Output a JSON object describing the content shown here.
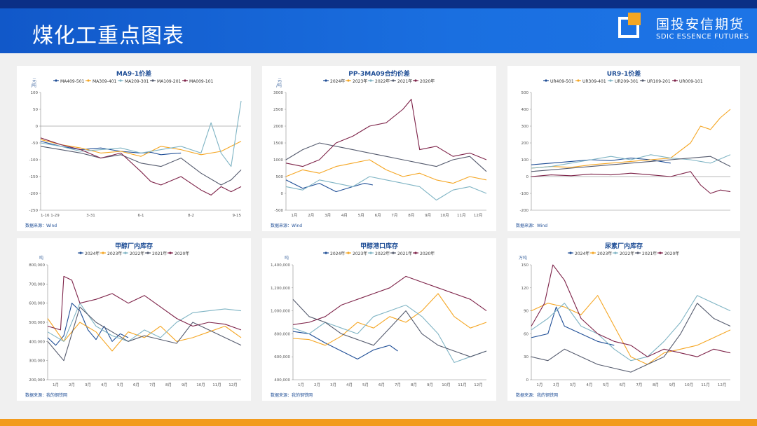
{
  "header": {
    "title": "煤化工重点图表",
    "brand_cn": "国投安信期货",
    "brand_en": "SDIC ESSENCE FUTURES"
  },
  "colors": {
    "header_blue": "#1a6fe0",
    "accent_orange": "#f29b1d",
    "s1": "#1f4e96",
    "s2": "#f5a623",
    "s3": "#7fb4c4",
    "s4": "#555b6e",
    "s5": "#7d2248"
  },
  "chart_data": [
    {
      "id": "ma91",
      "type": "line",
      "title": "MA9-1价差",
      "unit": "元\n/吨",
      "source": "数据来源：Wind",
      "ylim": [
        -250,
        100
      ],
      "yticks": [
        100,
        50,
        0,
        -50,
        -100,
        -150,
        -200,
        -250
      ],
      "xticks": [
        "1-16 1-29",
        "3-31",
        "6-1",
        "8-2",
        "9-15"
      ],
      "xlim": [
        0,
        100
      ],
      "zero_line": true,
      "series": [
        {
          "name": "MA409-501",
          "x": [
            0,
            10,
            20,
            30,
            40,
            50,
            55,
            60,
            65,
            70
          ],
          "y": [
            -45,
            -60,
            -70,
            -65,
            -75,
            -80,
            -78,
            -85,
            -82,
            -80
          ]
        },
        {
          "name": "MA309-401",
          "x": [
            0,
            10,
            20,
            30,
            40,
            50,
            60,
            70,
            80,
            90,
            95,
            100
          ],
          "y": [
            -40,
            -55,
            -65,
            -80,
            -75,
            -90,
            -60,
            -70,
            -85,
            -75,
            -60,
            -45
          ]
        },
        {
          "name": "MA209-301",
          "x": [
            0,
            10,
            20,
            30,
            40,
            50,
            60,
            70,
            80,
            85,
            90,
            95,
            100
          ],
          "y": [
            -50,
            -60,
            -75,
            -70,
            -65,
            -80,
            -70,
            -60,
            -80,
            10,
            -80,
            -120,
            75
          ]
        },
        {
          "name": "MA109-201",
          "x": [
            0,
            10,
            20,
            30,
            40,
            50,
            60,
            70,
            80,
            90,
            95,
            100
          ],
          "y": [
            -60,
            -70,
            -80,
            -95,
            -85,
            -110,
            -120,
            -95,
            -140,
            -175,
            -160,
            -130
          ]
        },
        {
          "name": "MA009-101",
          "x": [
            0,
            10,
            20,
            30,
            40,
            50,
            55,
            60,
            70,
            80,
            85,
            90,
            95,
            100
          ],
          "y": [
            -35,
            -55,
            -70,
            -95,
            -80,
            -135,
            -165,
            -175,
            -150,
            -190,
            -205,
            -180,
            -195,
            -180
          ]
        }
      ]
    },
    {
      "id": "pp3ma",
      "type": "line",
      "title": "PP-3MA09合约价差",
      "unit": "元\n/吨",
      "source": "数据来源：Wind",
      "ylim": [
        -500,
        3000
      ],
      "yticks": [
        3000,
        2500,
        2000,
        1500,
        1000,
        500,
        0,
        -500
      ],
      "xticks": [
        "1月",
        "2月",
        "3月",
        "4月",
        "5月",
        "6月",
        "7月",
        "8月",
        "9月",
        "10月",
        "11月",
        "12月"
      ],
      "xlim": [
        0,
        12
      ],
      "series": [
        {
          "name": "2024年",
          "x": [
            0,
            1,
            2,
            3,
            4,
            4.7,
            5.2
          ],
          "y": [
            400,
            150,
            300,
            50,
            200,
            300,
            250
          ]
        },
        {
          "name": "2023年",
          "x": [
            0,
            1,
            2,
            3,
            4,
            5,
            6,
            7,
            8,
            9,
            10,
            11,
            12
          ],
          "y": [
            500,
            700,
            600,
            800,
            900,
            1000,
            700,
            500,
            600,
            400,
            300,
            500,
            400
          ]
        },
        {
          "name": "2022年",
          "x": [
            0,
            1,
            2,
            3,
            4,
            5,
            6,
            7,
            8,
            9,
            10,
            11,
            12
          ],
          "y": [
            200,
            100,
            400,
            300,
            200,
            500,
            400,
            300,
            200,
            -200,
            100,
            200,
            0
          ]
        },
        {
          "name": "2021年",
          "x": [
            0,
            1,
            2,
            3,
            4,
            5,
            6,
            7,
            8,
            9,
            10,
            11,
            12
          ],
          "y": [
            1000,
            1300,
            1500,
            1400,
            1300,
            1200,
            1100,
            1000,
            900,
            800,
            1000,
            1100,
            650
          ]
        },
        {
          "name": "2020年",
          "x": [
            0,
            1,
            2,
            3,
            4,
            5,
            6,
            7,
            7.5,
            8,
            9,
            10,
            11,
            12
          ],
          "y": [
            900,
            800,
            1000,
            1500,
            1700,
            2000,
            2100,
            2500,
            2800,
            1300,
            1400,
            1100,
            1200,
            1000
          ]
        }
      ]
    },
    {
      "id": "ur91",
      "type": "line",
      "title": "UR9-1价差",
      "unit": "",
      "source": "数据来源：Wind",
      "ylim": [
        -200,
        500
      ],
      "yticks": [
        500,
        400,
        300,
        200,
        100,
        0,
        -100,
        -200
      ],
      "xticks": [],
      "xlim": [
        0,
        100
      ],
      "zero_line": true,
      "series": [
        {
          "name": "UR409-501",
          "x": [
            0,
            10,
            20,
            30,
            40,
            50,
            60,
            65,
            70
          ],
          "y": [
            70,
            80,
            90,
            100,
            95,
            110,
            100,
            90,
            80
          ]
        },
        {
          "name": "UR309-401",
          "x": [
            0,
            10,
            20,
            30,
            40,
            50,
            60,
            70,
            80,
            85,
            90,
            95,
            100
          ],
          "y": [
            50,
            60,
            55,
            70,
            80,
            90,
            100,
            110,
            200,
            300,
            280,
            350,
            400
          ]
        },
        {
          "name": "UR209-301",
          "x": [
            0,
            10,
            20,
            30,
            40,
            50,
            60,
            70,
            80,
            90,
            100
          ],
          "y": [
            50,
            60,
            80,
            100,
            120,
            100,
            130,
            110,
            100,
            80,
            130
          ]
        },
        {
          "name": "UR109-201",
          "x": [
            0,
            10,
            20,
            30,
            40,
            50,
            60,
            70,
            80,
            90,
            100
          ],
          "y": [
            30,
            40,
            50,
            60,
            70,
            80,
            90,
            100,
            110,
            120,
            60
          ]
        },
        {
          "name": "UR009-101",
          "x": [
            0,
            10,
            20,
            30,
            40,
            50,
            60,
            70,
            80,
            85,
            90,
            95,
            100
          ],
          "y": [
            0,
            10,
            5,
            15,
            10,
            20,
            10,
            0,
            30,
            -50,
            -100,
            -80,
            -90
          ]
        }
      ]
    },
    {
      "id": "ma_factory",
      "type": "line",
      "title": "甲醇厂内库存",
      "unit": "吨",
      "source": "数据来源：我的钢铁网",
      "ylim": [
        200000,
        800000
      ],
      "yticks": [
        "800,000",
        "700,000",
        "600,000",
        "500,000",
        "400,000",
        "300,000",
        "200,000"
      ],
      "xticks": [
        "1月",
        "2月",
        "3月",
        "4月",
        "5月",
        "6月",
        "7月",
        "8月",
        "9月",
        "10月",
        "11月",
        "12月"
      ],
      "xlim": [
        0,
        12
      ],
      "series": [
        {
          "name": "2024年",
          "x": [
            0,
            0.5,
            1,
            1.5,
            2,
            2.5,
            3,
            3.5,
            4,
            4.5,
            5
          ],
          "y": [
            420000,
            380000,
            430000,
            600000,
            560000,
            460000,
            410000,
            480000,
            400000,
            440000,
            420000
          ]
        },
        {
          "name": "2023年",
          "x": [
            0,
            1,
            2,
            3,
            4,
            5,
            6,
            7,
            8,
            9,
            10,
            11,
            12
          ],
          "y": [
            520000,
            400000,
            500000,
            450000,
            350000,
            450000,
            420000,
            480000,
            400000,
            420000,
            450000,
            480000,
            420000
          ]
        },
        {
          "name": "2022年",
          "x": [
            0,
            1,
            2,
            3,
            4,
            5,
            6,
            7,
            8,
            9,
            10,
            11,
            12
          ],
          "y": [
            450000,
            400000,
            600000,
            480000,
            430000,
            400000,
            460000,
            420000,
            500000,
            550000,
            560000,
            570000,
            560000
          ]
        },
        {
          "name": "2021年",
          "x": [
            0,
            1,
            2,
            3,
            4,
            5,
            6,
            7,
            8,
            9,
            10,
            11,
            12
          ],
          "y": [
            400000,
            300000,
            580000,
            500000,
            450000,
            400000,
            430000,
            410000,
            390000,
            500000,
            460000,
            420000,
            380000
          ]
        },
        {
          "name": "2020年",
          "x": [
            0,
            0.8,
            1,
            1.5,
            2,
            3,
            4,
            5,
            6,
            7,
            8,
            9,
            10,
            11,
            12
          ],
          "y": [
            480000,
            460000,
            740000,
            720000,
            600000,
            620000,
            650000,
            600000,
            640000,
            580000,
            520000,
            480000,
            500000,
            490000,
            460000
          ]
        }
      ]
    },
    {
      "id": "ma_port",
      "type": "line",
      "title": "甲醇港口库存",
      "unit": "吨",
      "source": "数据来源：我的钢铁网",
      "ylim": [
        400000,
        1400000
      ],
      "yticks": [
        "1,400,000",
        "1,200,000",
        "1,000,000",
        "800,000",
        "600,000",
        "400,000"
      ],
      "xticks": [
        "1月",
        "2月",
        "3月",
        "4月",
        "5月",
        "6月",
        "7月",
        "8月",
        "9月",
        "10月",
        "11月",
        "12月"
      ],
      "xlim": [
        0,
        12
      ],
      "series": [
        {
          "name": "2024年",
          "x": [
            0,
            1,
            2,
            3,
            4,
            5,
            6,
            6.5
          ],
          "y": [
            820000,
            800000,
            720000,
            650000,
            580000,
            660000,
            700000,
            650000
          ]
        },
        {
          "name": "2023年",
          "x": [
            0,
            1,
            2,
            3,
            4,
            5,
            6,
            7,
            8,
            9,
            10,
            11,
            12
          ],
          "y": [
            760000,
            750000,
            700000,
            780000,
            900000,
            850000,
            950000,
            900000,
            1000000,
            1150000,
            950000,
            850000,
            900000
          ]
        },
        {
          "name": "2022年",
          "x": [
            0,
            1,
            2,
            3,
            4,
            5,
            6,
            7,
            8,
            9,
            10,
            11,
            12
          ],
          "y": [
            850000,
            800000,
            900000,
            850000,
            800000,
            950000,
            1000000,
            1050000,
            950000,
            800000,
            550000,
            600000,
            650000
          ]
        },
        {
          "name": "2021年",
          "x": [
            0,
            1,
            2,
            3,
            4,
            5,
            6,
            7,
            8,
            9,
            10,
            11,
            12
          ],
          "y": [
            1100000,
            950000,
            900000,
            800000,
            750000,
            700000,
            850000,
            1000000,
            800000,
            700000,
            650000,
            600000,
            650000
          ]
        },
        {
          "name": "2020年",
          "x": [
            0,
            1,
            2,
            3,
            4,
            5,
            6,
            7,
            8,
            9,
            10,
            11,
            12
          ],
          "y": [
            880000,
            900000,
            950000,
            1050000,
            1100000,
            1150000,
            1200000,
            1300000,
            1250000,
            1200000,
            1150000,
            1100000,
            1000000
          ]
        }
      ]
    },
    {
      "id": "ur_factory",
      "type": "line",
      "title": "尿素厂内库存",
      "unit": "万吨",
      "source": "数据来源：我的钢铁网",
      "ylim": [
        0,
        150
      ],
      "yticks": [
        150,
        120,
        90,
        60,
        30,
        0
      ],
      "xticks": [
        "1月",
        "2月",
        "3月",
        "4月",
        "5月",
        "6月",
        "7月",
        "8月",
        "9月",
        "10月",
        "11月",
        "12月"
      ],
      "xlim": [
        0,
        12
      ],
      "series": [
        {
          "name": "2024年",
          "x": [
            0,
            1,
            1.5,
            2,
            3,
            4,
            5
          ],
          "y": [
            55,
            60,
            95,
            70,
            60,
            50,
            45
          ]
        },
        {
          "name": "2023年",
          "x": [
            0,
            1,
            2,
            3,
            4,
            5,
            6,
            7,
            8,
            9,
            10,
            11,
            12
          ],
          "y": [
            90,
            100,
            95,
            85,
            110,
            70,
            30,
            20,
            35,
            40,
            45,
            55,
            65
          ]
        },
        {
          "name": "2022年",
          "x": [
            0,
            1,
            2,
            3,
            4,
            5,
            6,
            7,
            8,
            9,
            10,
            11,
            12
          ],
          "y": [
            65,
            80,
            100,
            70,
            60,
            40,
            25,
            30,
            50,
            75,
            110,
            100,
            90
          ]
        },
        {
          "name": "2021年",
          "x": [
            0,
            1,
            2,
            3,
            4,
            5,
            6,
            7,
            8,
            9,
            10,
            11,
            12
          ],
          "y": [
            30,
            25,
            40,
            30,
            20,
            15,
            10,
            20,
            30,
            60,
            100,
            80,
            70
          ]
        },
        {
          "name": "2020年",
          "x": [
            0,
            0.8,
            1.3,
            2,
            3,
            4,
            5,
            6,
            7,
            8,
            9,
            10,
            11,
            12
          ],
          "y": [
            70,
            100,
            150,
            130,
            80,
            60,
            50,
            45,
            30,
            40,
            35,
            30,
            40,
            35
          ]
        }
      ]
    }
  ]
}
